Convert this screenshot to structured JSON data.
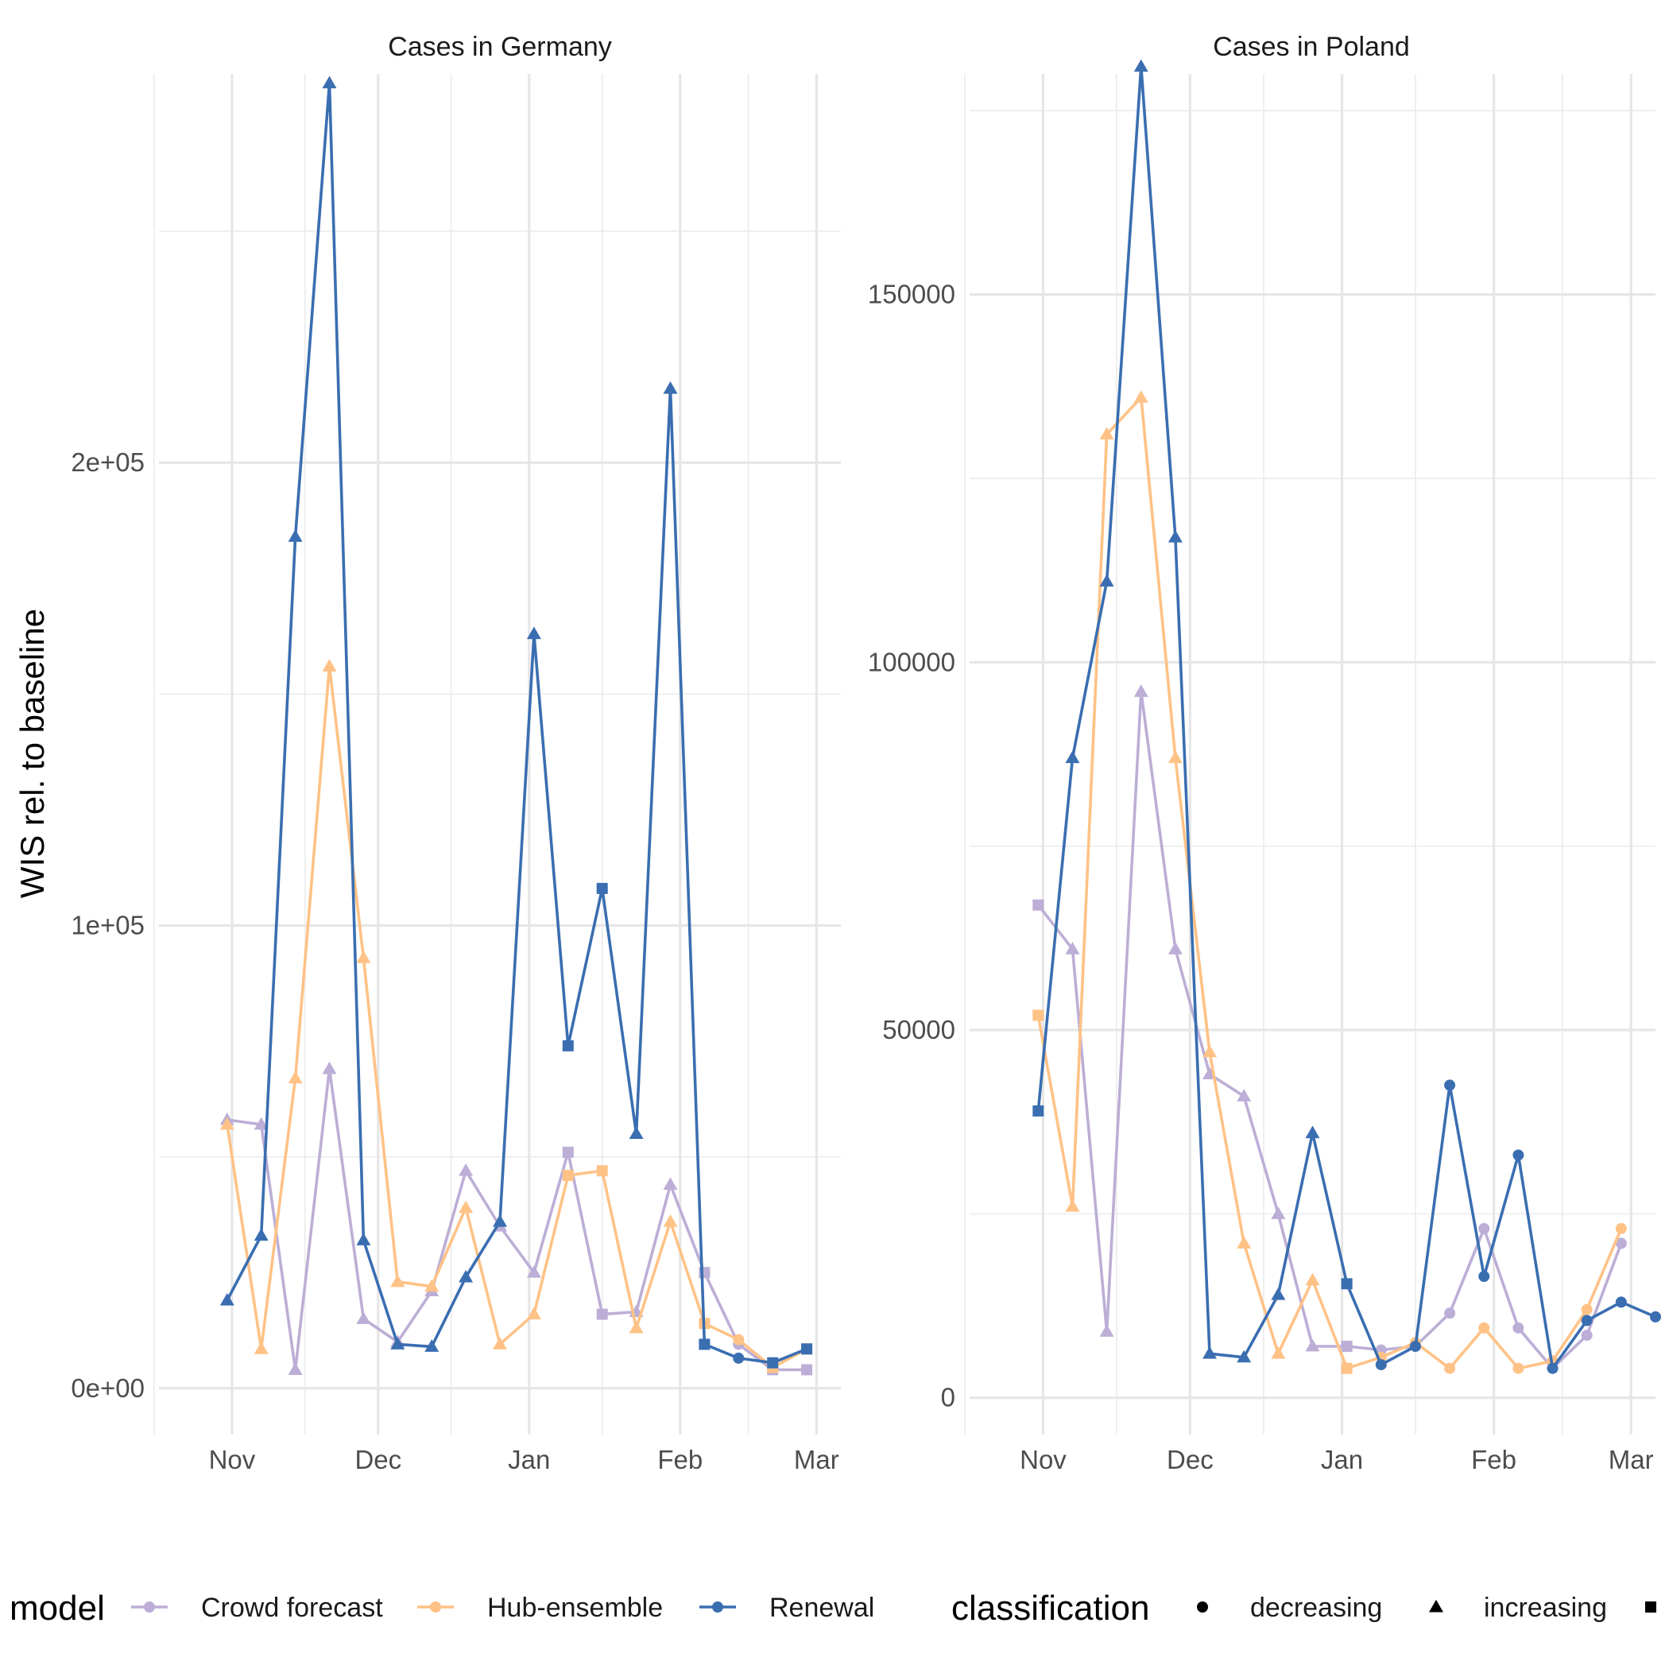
{
  "chart_data": {
    "type": "line",
    "ylabel": "WIS rel. to baseline",
    "x_tick_labels": [
      "Nov",
      "Dec",
      "Jan",
      "Feb",
      "Mar"
    ],
    "x_ticks": [
      "2020-11-01",
      "2020-12-01",
      "2021-01-01",
      "2021-02-01",
      "2021-03-01"
    ],
    "x_minor_ticks": [
      "2020-10-16",
      "2020-11-16",
      "2020-12-16",
      "2021-01-16",
      "2021-02-15"
    ],
    "grid": true,
    "legend_position": "bottom",
    "panels": [
      {
        "title": "Cases in Germany",
        "xlim": [
          "2020-10-17",
          "2021-03-06"
        ],
        "ylim": [
          -10000,
          284000
        ],
        "y_ticks": [
          0,
          100000,
          200000
        ],
        "y_tick_labels": [
          "0e+00",
          "1e+05",
          "2e+05"
        ],
        "y_minor_ticks": [
          50000,
          150000,
          250000
        ],
        "series": [
          {
            "name": "Crowd forecast",
            "points": [
              {
                "date": "2020-10-31",
                "value": 58000,
                "classification": "increasing"
              },
              {
                "date": "2020-11-07",
                "value": 57000,
                "classification": "increasing"
              },
              {
                "date": "2020-11-14",
                "value": 4000,
                "classification": "increasing"
              },
              {
                "date": "2020-11-21",
                "value": 69000,
                "classification": "increasing"
              },
              {
                "date": "2020-11-28",
                "value": 15000,
                "classification": "increasing"
              },
              {
                "date": "2020-12-05",
                "value": 10000,
                "classification": "increasing"
              },
              {
                "date": "2020-12-12",
                "value": 21000,
                "classification": "increasing"
              },
              {
                "date": "2020-12-19",
                "value": 47000,
                "classification": "increasing"
              },
              {
                "date": "2020-12-26",
                "value": 35000,
                "classification": "increasing"
              },
              {
                "date": "2021-01-02",
                "value": 25000,
                "classification": "increasing"
              },
              {
                "date": "2021-01-09",
                "value": 51000,
                "classification": "unknown"
              },
              {
                "date": "2021-01-16",
                "value": 16000,
                "classification": "unknown"
              },
              {
                "date": "2021-01-23",
                "value": 16500,
                "classification": "increasing"
              },
              {
                "date": "2021-01-30",
                "value": 44000,
                "classification": "increasing"
              },
              {
                "date": "2021-02-06",
                "value": 25000,
                "classification": "unknown"
              },
              {
                "date": "2021-02-13",
                "value": 9500,
                "classification": "decreasing"
              },
              {
                "date": "2021-02-20",
                "value": 4000,
                "classification": "unknown"
              },
              {
                "date": "2021-02-27",
                "value": 4000,
                "classification": "unknown"
              }
            ]
          },
          {
            "name": "Hub-ensemble",
            "points": [
              {
                "date": "2020-10-31",
                "value": 57000,
                "classification": "increasing"
              },
              {
                "date": "2020-11-07",
                "value": 8500,
                "classification": "increasing"
              },
              {
                "date": "2020-11-14",
                "value": 67000,
                "classification": "increasing"
              },
              {
                "date": "2020-11-21",
                "value": 156000,
                "classification": "increasing"
              },
              {
                "date": "2020-11-28",
                "value": 93000,
                "classification": "increasing"
              },
              {
                "date": "2020-12-05",
                "value": 23000,
                "classification": "increasing"
              },
              {
                "date": "2020-12-12",
                "value": 22000,
                "classification": "increasing"
              },
              {
                "date": "2020-12-19",
                "value": 39000,
                "classification": "increasing"
              },
              {
                "date": "2020-12-26",
                "value": 9500,
                "classification": "increasing"
              },
              {
                "date": "2021-01-02",
                "value": 16000,
                "classification": "increasing"
              },
              {
                "date": "2021-01-09",
                "value": 46000,
                "classification": "unknown"
              },
              {
                "date": "2021-01-16",
                "value": 47000,
                "classification": "unknown"
              },
              {
                "date": "2021-01-23",
                "value": 13000,
                "classification": "increasing"
              },
              {
                "date": "2021-01-30",
                "value": 36000,
                "classification": "increasing"
              },
              {
                "date": "2021-02-06",
                "value": 14000,
                "classification": "unknown"
              },
              {
                "date": "2021-02-13",
                "value": 10500,
                "classification": "decreasing"
              },
              {
                "date": "2021-02-20",
                "value": 4500,
                "classification": "unknown"
              },
              {
                "date": "2021-02-27",
                "value": 8500,
                "classification": "unknown"
              }
            ]
          },
          {
            "name": "Renewal",
            "points": [
              {
                "date": "2020-10-31",
                "value": 19000,
                "classification": "increasing"
              },
              {
                "date": "2020-11-07",
                "value": 33000,
                "classification": "increasing"
              },
              {
                "date": "2020-11-14",
                "value": 184000,
                "classification": "increasing"
              },
              {
                "date": "2020-11-21",
                "value": 282000,
                "classification": "increasing"
              },
              {
                "date": "2020-11-28",
                "value": 32000,
                "classification": "increasing"
              },
              {
                "date": "2020-12-05",
                "value": 9500,
                "classification": "increasing"
              },
              {
                "date": "2020-12-12",
                "value": 9000,
                "classification": "increasing"
              },
              {
                "date": "2020-12-19",
                "value": 24000,
                "classification": "increasing"
              },
              {
                "date": "2020-12-26",
                "value": 36000,
                "classification": "increasing"
              },
              {
                "date": "2021-01-02",
                "value": 163000,
                "classification": "increasing"
              },
              {
                "date": "2021-01-09",
                "value": 74000,
                "classification": "unknown"
              },
              {
                "date": "2021-01-16",
                "value": 108000,
                "classification": "unknown"
              },
              {
                "date": "2021-01-23",
                "value": 55000,
                "classification": "increasing"
              },
              {
                "date": "2021-01-30",
                "value": 216000,
                "classification": "increasing"
              },
              {
                "date": "2021-02-06",
                "value": 9500,
                "classification": "unknown"
              },
              {
                "date": "2021-02-13",
                "value": 6500,
                "classification": "decreasing"
              },
              {
                "date": "2021-02-20",
                "value": 5500,
                "classification": "unknown"
              },
              {
                "date": "2021-02-27",
                "value": 8500,
                "classification": "unknown"
              }
            ]
          }
        ]
      },
      {
        "title": "Cases in Poland",
        "xlim": [
          "2020-10-17",
          "2021-03-06"
        ],
        "ylim": [
          -5000,
          180000
        ],
        "y_ticks": [
          0,
          50000,
          100000,
          150000
        ],
        "y_tick_labels": [
          "0",
          "50000",
          "100000",
          "150000"
        ],
        "y_minor_ticks": [
          25000,
          75000,
          125000,
          175000
        ],
        "series": [
          {
            "name": "Crowd forecast",
            "points": [
              {
                "date": "2020-10-31",
                "value": 67000,
                "classification": "unknown"
              },
              {
                "date": "2020-11-07",
                "value": 61000,
                "classification": "increasing"
              },
              {
                "date": "2020-11-14",
                "value": 9000,
                "classification": "increasing"
              },
              {
                "date": "2020-11-21",
                "value": 96000,
                "classification": "increasing"
              },
              {
                "date": "2020-11-28",
                "value": 61000,
                "classification": "increasing"
              },
              {
                "date": "2020-12-05",
                "value": 44000,
                "classification": "increasing"
              },
              {
                "date": "2020-12-12",
                "value": 41000,
                "classification": "increasing"
              },
              {
                "date": "2020-12-19",
                "value": 25000,
                "classification": "increasing"
              },
              {
                "date": "2020-12-26",
                "value": 7000,
                "classification": "increasing"
              },
              {
                "date": "2021-01-02",
                "value": 7000,
                "classification": "unknown"
              },
              {
                "date": "2021-01-09",
                "value": 6500,
                "classification": "decreasing"
              },
              {
                "date": "2021-01-16",
                "value": 7000,
                "classification": "decreasing"
              },
              {
                "date": "2021-01-23",
                "value": 11500,
                "classification": "decreasing"
              },
              {
                "date": "2021-01-30",
                "value": 23000,
                "classification": "decreasing"
              },
              {
                "date": "2021-02-06",
                "value": 9500,
                "classification": "decreasing"
              },
              {
                "date": "2021-02-13",
                "value": 4000,
                "classification": "decreasing"
              },
              {
                "date": "2021-02-20",
                "value": 8500,
                "classification": "decreasing"
              },
              {
                "date": "2021-02-27",
                "value": 21000,
                "classification": "decreasing"
              }
            ]
          },
          {
            "name": "Hub-ensemble",
            "points": [
              {
                "date": "2020-10-31",
                "value": 52000,
                "classification": "unknown"
              },
              {
                "date": "2020-11-07",
                "value": 26000,
                "classification": "increasing"
              },
              {
                "date": "2020-11-14",
                "value": 131000,
                "classification": "increasing"
              },
              {
                "date": "2020-11-21",
                "value": 136000,
                "classification": "increasing"
              },
              {
                "date": "2020-11-28",
                "value": 87000,
                "classification": "increasing"
              },
              {
                "date": "2020-12-05",
                "value": 47000,
                "classification": "increasing"
              },
              {
                "date": "2020-12-12",
                "value": 21000,
                "classification": "increasing"
              },
              {
                "date": "2020-12-19",
                "value": 6000,
                "classification": "increasing"
              },
              {
                "date": "2020-12-26",
                "value": 16000,
                "classification": "increasing"
              },
              {
                "date": "2021-01-02",
                "value": 4000,
                "classification": "unknown"
              },
              {
                "date": "2021-01-09",
                "value": 5500,
                "classification": "decreasing"
              },
              {
                "date": "2021-01-16",
                "value": 7500,
                "classification": "decreasing"
              },
              {
                "date": "2021-01-23",
                "value": 4000,
                "classification": "decreasing"
              },
              {
                "date": "2021-01-30",
                "value": 9500,
                "classification": "decreasing"
              },
              {
                "date": "2021-02-06",
                "value": 4000,
                "classification": "decreasing"
              },
              {
                "date": "2021-02-13",
                "value": 5000,
                "classification": "decreasing"
              },
              {
                "date": "2021-02-20",
                "value": 12000,
                "classification": "decreasing"
              },
              {
                "date": "2021-02-27",
                "value": 23000,
                "classification": "decreasing"
              }
            ]
          },
          {
            "name": "Renewal",
            "points": [
              {
                "date": "2020-10-31",
                "value": 39000,
                "classification": "unknown"
              },
              {
                "date": "2020-11-07",
                "value": 87000,
                "classification": "increasing"
              },
              {
                "date": "2020-11-14",
                "value": 111000,
                "classification": "increasing"
              },
              {
                "date": "2020-11-21",
                "value": 181000,
                "classification": "increasing"
              },
              {
                "date": "2020-11-28",
                "value": 117000,
                "classification": "increasing"
              },
              {
                "date": "2020-12-05",
                "value": 6000,
                "classification": "increasing"
              },
              {
                "date": "2020-12-12",
                "value": 5500,
                "classification": "increasing"
              },
              {
                "date": "2020-12-19",
                "value": 14000,
                "classification": "increasing"
              },
              {
                "date": "2020-12-26",
                "value": 36000,
                "classification": "increasing"
              },
              {
                "date": "2021-01-02",
                "value": 15500,
                "classification": "unknown"
              },
              {
                "date": "2021-01-09",
                "value": 4500,
                "classification": "decreasing"
              },
              {
                "date": "2021-01-16",
                "value": 7000,
                "classification": "decreasing"
              },
              {
                "date": "2021-01-23",
                "value": 42500,
                "classification": "decreasing"
              },
              {
                "date": "2021-01-30",
                "value": 16500,
                "classification": "decreasing"
              },
              {
                "date": "2021-02-06",
                "value": 33000,
                "classification": "decreasing"
              },
              {
                "date": "2021-02-13",
                "value": 4000,
                "classification": "decreasing"
              },
              {
                "date": "2021-02-20",
                "value": 10500,
                "classification": "decreasing"
              },
              {
                "date": "2021-02-27",
                "value": 13000,
                "classification": "decreasing"
              },
              {
                "date": "2021-03-06",
                "value": 11000,
                "classification": "decreasing"
              }
            ]
          }
        ]
      }
    ],
    "legend": {
      "model_title": "model",
      "models": [
        {
          "name": "Crowd forecast",
          "color": "#BCAED6"
        },
        {
          "name": "Hub-ensemble",
          "color": "#FFC286"
        },
        {
          "name": "Renewal",
          "color": "#3A6EB1"
        }
      ],
      "classification_title": "classification",
      "classifications": [
        {
          "name": "decreasing",
          "shape": "circle-icon"
        },
        {
          "name": "increasing",
          "shape": "triangle-icon"
        },
        {
          "name": "",
          "shape": "square-icon"
        }
      ]
    }
  }
}
